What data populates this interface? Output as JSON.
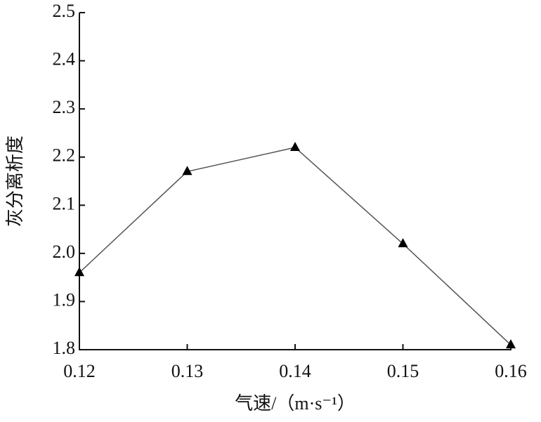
{
  "chart_data": {
    "type": "line",
    "xlabel": "气速/（m·s⁻¹）",
    "ylabel": "灰分离析度",
    "x": [
      0.12,
      0.13,
      0.14,
      0.15,
      0.16
    ],
    "series": [
      {
        "color": "#555555",
        "values": [
          1.96,
          2.17,
          2.22,
          2.02,
          1.81
        ]
      }
    ],
    "xlim": [
      0.12,
      0.16
    ],
    "xticks": [
      0.12,
      0.13,
      0.14,
      0.15,
      0.16
    ],
    "ylim": [
      1.8,
      2.5
    ],
    "yticks": [
      1.8,
      1.9,
      {
        "value": 2,
        "label": "2.0"
      },
      2.1,
      2.2,
      2.3,
      2.4,
      2.5
    ],
    "marker": "triangle"
  }
}
